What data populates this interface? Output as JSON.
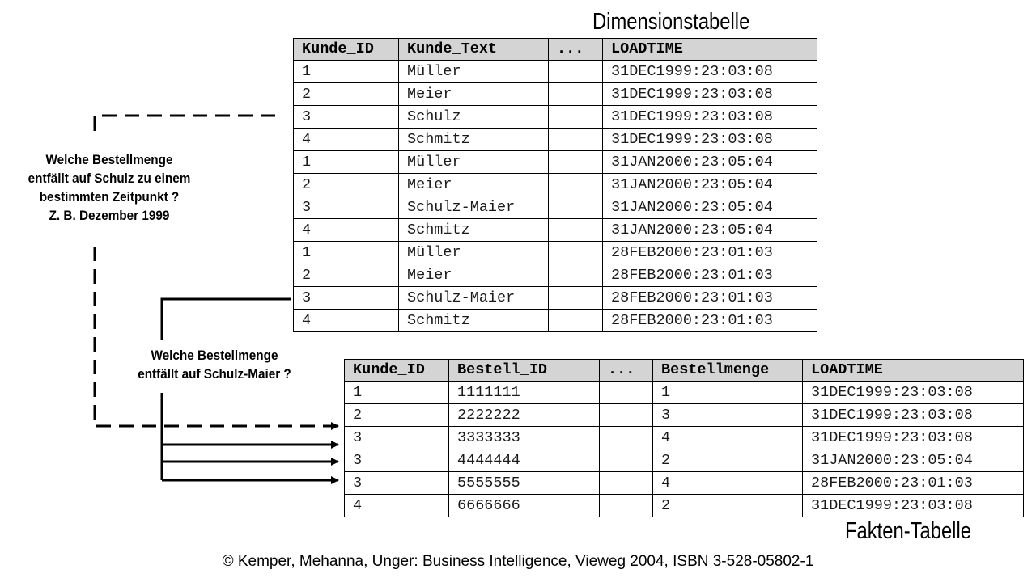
{
  "dimension_table": {
    "title": "Dimensionstabelle",
    "headers": [
      "Kunde_ID",
      "Kunde_Text",
      "...",
      "LOADTIME"
    ],
    "rows": [
      [
        "1",
        "Müller",
        "",
        "31DEC1999:23:03:08"
      ],
      [
        "2",
        "Meier",
        "",
        "31DEC1999:23:03:08"
      ],
      [
        "3",
        "Schulz",
        "",
        "31DEC1999:23:03:08"
      ],
      [
        "4",
        "Schmitz",
        "",
        "31DEC1999:23:03:08"
      ],
      [
        "1",
        "Müller",
        "",
        "31JAN2000:23:05:04"
      ],
      [
        "2",
        "Meier",
        "",
        "31JAN2000:23:05:04"
      ],
      [
        "3",
        "Schulz-Maier",
        "",
        "31JAN2000:23:05:04"
      ],
      [
        "4",
        "Schmitz",
        "",
        "31JAN2000:23:05:04"
      ],
      [
        "1",
        "Müller",
        "",
        "28FEB2000:23:01:03"
      ],
      [
        "2",
        "Meier",
        "",
        "28FEB2000:23:01:03"
      ],
      [
        "3",
        "Schulz-Maier",
        "",
        "28FEB2000:23:01:03"
      ],
      [
        "4",
        "Schmitz",
        "",
        "28FEB2000:23:01:03"
      ]
    ]
  },
  "fact_table": {
    "title": "Fakten-Tabelle",
    "headers": [
      "Kunde_ID",
      "Bestell_ID",
      "...",
      "Bestellmenge",
      "LOADTIME"
    ],
    "rows": [
      [
        "1",
        "1111111",
        "",
        "1",
        "31DEC1999:23:03:08"
      ],
      [
        "2",
        "2222222",
        "",
        "3",
        "31DEC1999:23:03:08"
      ],
      [
        "3",
        "3333333",
        "",
        "4",
        "31DEC1999:23:03:08"
      ],
      [
        "3",
        "4444444",
        "",
        "2",
        "31JAN2000:23:05:04"
      ],
      [
        "3",
        "5555555",
        "",
        "4",
        "28FEB2000:23:01:03"
      ],
      [
        "4",
        "6666666",
        "",
        "2",
        "31DEC1999:23:03:08"
      ]
    ]
  },
  "question_1": {
    "lines": [
      "Welche Bestellmenge",
      "entfällt auf Schulz zu einem",
      "bestimmten Zeitpunkt ?",
      "Z. B. Dezember 1999"
    ]
  },
  "question_2": {
    "lines": [
      "Welche Bestellmenge",
      "entfällt auf Schulz-Maier ?"
    ]
  },
  "footer": "© Kemper, Mehanna, Unger: Business Intelligence, Vieweg 2004, ISBN 3-528-05802-1"
}
